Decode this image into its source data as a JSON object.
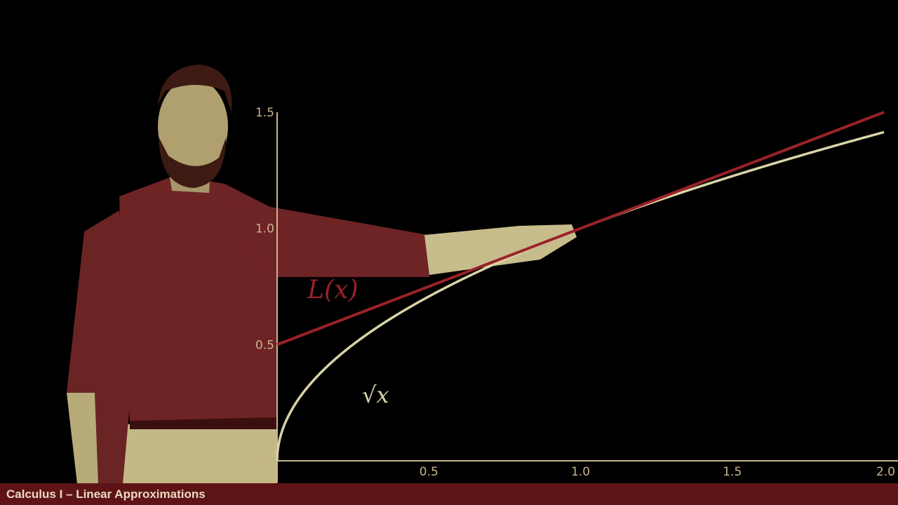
{
  "footer": {
    "title": "Calculus I – Linear Approximations"
  },
  "colors": {
    "background": "#000000",
    "axis": "#c9b58c",
    "sqrt_curve": "#d9d4a6",
    "linear_approx": "#9a2228",
    "footer_bar": "#5e1416",
    "footer_text": "#e8dcc0"
  },
  "chart_data": {
    "type": "line",
    "title": "",
    "xlabel": "",
    "ylabel": "",
    "xlim": [
      0,
      2
    ],
    "ylim": [
      0,
      1.5
    ],
    "x_ticks": [
      "0.5",
      "1.0",
      "1.5",
      "2.0"
    ],
    "y_ticks": [
      "0.5",
      "1.0",
      "1.5"
    ],
    "grid": false,
    "series": [
      {
        "name": "√x",
        "label_text": "√x",
        "color": "#d9d4a6",
        "function": "sqrt(x)",
        "x": [
          0,
          0.05,
          0.1,
          0.25,
          0.5,
          0.75,
          1.0,
          1.25,
          1.5,
          1.75,
          2.0
        ],
        "y": [
          0,
          0.224,
          0.316,
          0.5,
          0.707,
          0.866,
          1.0,
          1.118,
          1.225,
          1.323,
          1.414
        ]
      },
      {
        "name": "L(x)",
        "label_text": "L(x)",
        "color": "#9a2228",
        "function": "0.5 + 0.5x",
        "x": [
          0,
          2.0
        ],
        "y": [
          0.5,
          1.5
        ]
      }
    ]
  }
}
